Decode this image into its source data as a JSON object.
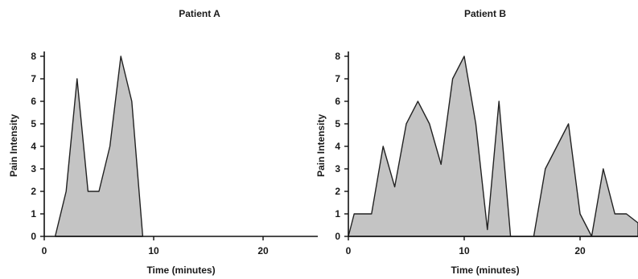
{
  "chart_data": [
    {
      "type": "area",
      "title": "Patient A",
      "xlabel": "Time (minutes)",
      "ylabel": "Pain Intensity",
      "xlim": [
        0,
        25
      ],
      "ylim": [
        0,
        8
      ],
      "xticks": [
        0,
        10,
        20
      ],
      "yticks": [
        0,
        1,
        2,
        3,
        4,
        5,
        6,
        7,
        8
      ],
      "grid": false,
      "fill_color": "#c4c4c4",
      "x": [
        1,
        2,
        3,
        4,
        5,
        6,
        7,
        8,
        9
      ],
      "values": [
        0,
        2,
        7,
        2,
        2,
        4,
        8,
        6,
        0
      ]
    },
    {
      "type": "area",
      "title": "Patient B",
      "xlabel": "Time (minutes)",
      "ylabel": "Pain Intensity",
      "xlim": [
        0,
        25
      ],
      "ylim": [
        0,
        8
      ],
      "xticks": [
        0,
        10,
        20
      ],
      "yticks": [
        0,
        1,
        2,
        3,
        4,
        5,
        6,
        7,
        8
      ],
      "grid": false,
      "fill_color": "#c4c4c4",
      "x": [
        0,
        0.5,
        1,
        2,
        3,
        4,
        5,
        6,
        7,
        8,
        9,
        10,
        11,
        12,
        13,
        14,
        15,
        16,
        17,
        18,
        19,
        20,
        21,
        22,
        23,
        24,
        25
      ],
      "values": [
        0,
        1,
        1,
        1,
        4,
        2.2,
        5,
        6,
        5,
        3.2,
        7,
        8,
        5,
        0.3,
        6,
        0,
        0,
        0,
        3,
        4,
        5,
        1,
        0,
        3,
        1,
        1,
        0.6
      ]
    }
  ]
}
